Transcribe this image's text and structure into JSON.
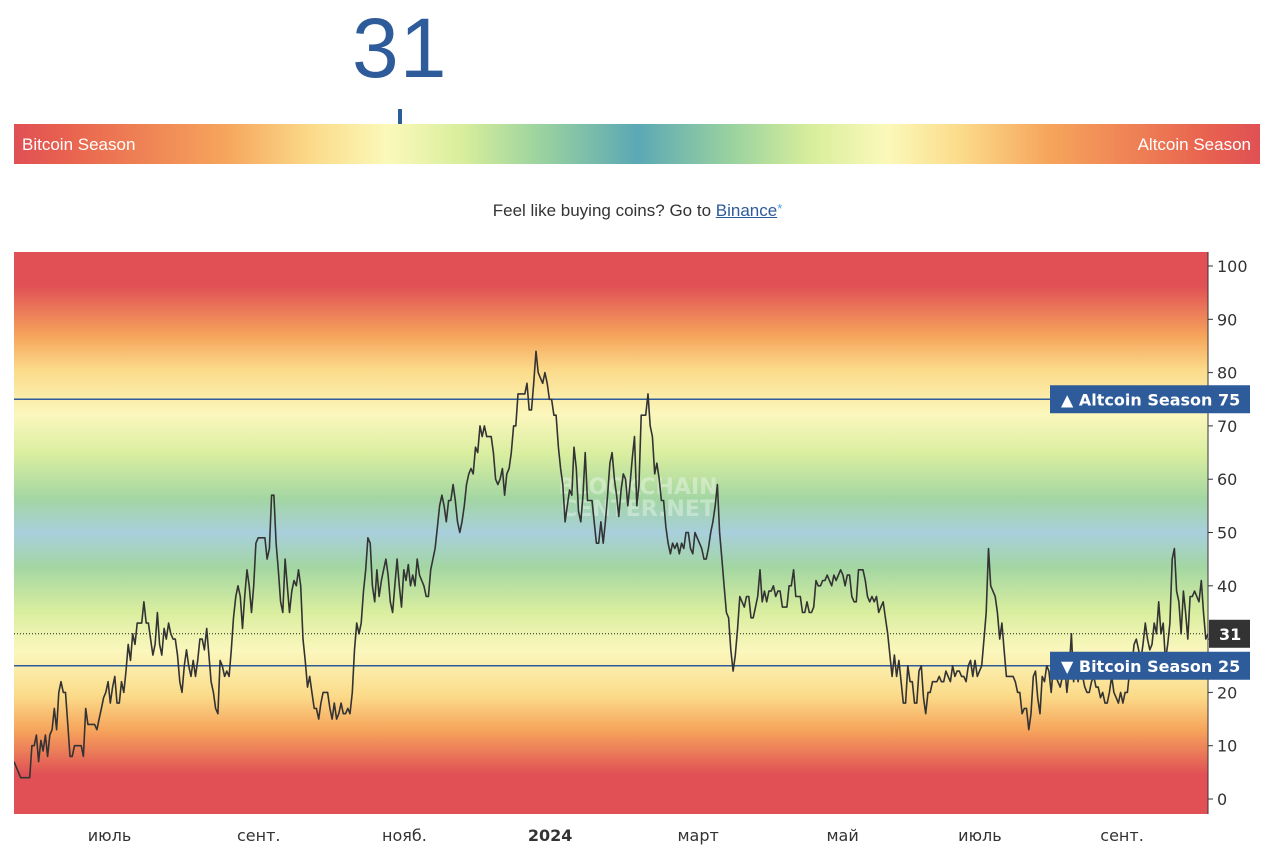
{
  "indicator": {
    "value": "31",
    "left_label": "Bitcoin Season",
    "right_label": "Altcoin Season",
    "position": 0.31
  },
  "promo": {
    "text": "Feel like buying coins? Go to ",
    "link_label": "Binance",
    "asterisk": "*"
  },
  "watermark": {
    "line1": "BLOCKCHAIN",
    "line2": "CENTER.NET"
  },
  "colors": {
    "accent": "#2e5b9a",
    "red": "#e05055",
    "line": "#333333"
  },
  "chart_data": {
    "type": "line",
    "ylim": [
      0,
      100
    ],
    "y_ticks": [
      0,
      10,
      20,
      30,
      40,
      50,
      60,
      70,
      80,
      90,
      100
    ],
    "x_ticks": [
      {
        "label": "июль",
        "bold": false,
        "t": 0.08
      },
      {
        "label": "сент.",
        "bold": false,
        "t": 0.205
      },
      {
        "label": "нояб.",
        "bold": false,
        "t": 0.327
      },
      {
        "label": "2024",
        "bold": true,
        "t": 0.449
      },
      {
        "label": "март",
        "bold": false,
        "t": 0.573
      },
      {
        "label": "май",
        "bold": false,
        "t": 0.694
      },
      {
        "label": "июль",
        "bold": false,
        "t": 0.809
      },
      {
        "label": "сент.",
        "bold": false,
        "t": 0.928
      }
    ],
    "reference_lines": [
      {
        "label": "▲ Altcoin Season",
        "value": 75
      },
      {
        "label": "▼ Bitcoin Season",
        "value": 25
      }
    ],
    "current": {
      "label": "31",
      "value": 31
    },
    "series": [
      {
        "values": [
          7,
          6,
          5,
          4,
          4,
          4,
          4,
          4,
          10,
          10,
          12,
          7,
          11,
          9,
          12,
          8,
          12,
          13,
          17,
          13,
          20,
          22,
          20,
          20,
          14,
          8,
          8,
          10,
          10,
          10,
          10,
          8,
          17,
          14,
          14,
          14,
          14,
          13,
          15,
          17,
          19,
          20,
          22,
          18,
          21,
          23,
          18,
          18,
          22,
          20,
          24,
          29,
          26,
          31,
          29,
          33,
          33,
          33,
          37,
          33,
          33,
          30,
          27,
          29,
          35,
          29,
          27,
          32,
          30,
          33,
          31,
          30,
          30,
          27,
          22,
          20,
          25,
          28,
          25,
          23,
          26,
          23,
          26,
          30,
          30,
          28,
          32,
          27,
          22,
          20,
          17,
          16,
          26,
          25,
          23,
          24,
          23,
          28,
          34,
          38,
          40,
          38,
          32,
          38,
          43,
          40,
          35,
          40,
          48,
          49,
          49,
          49,
          49,
          45,
          47,
          57,
          57,
          48,
          43,
          37,
          35,
          45,
          40,
          35,
          39,
          41,
          40,
          43,
          40,
          30,
          26,
          21,
          23,
          20,
          17,
          17,
          15,
          18,
          20,
          20,
          20,
          17,
          15,
          18,
          15,
          16,
          18,
          16,
          16,
          17,
          16,
          20,
          28,
          33,
          31,
          33,
          39,
          43,
          49,
          48,
          40,
          37,
          43,
          38,
          41,
          43,
          45,
          42,
          37,
          35,
          40,
          45,
          40,
          36,
          43,
          41,
          44,
          40,
          42,
          40,
          45,
          42,
          41,
          40,
          38,
          38,
          43,
          45,
          47,
          51,
          55,
          57,
          55,
          52,
          56,
          56,
          59,
          56,
          52,
          50,
          52,
          55,
          59,
          61,
          62,
          61,
          66,
          65,
          70,
          68,
          70,
          68,
          68,
          68,
          65,
          60,
          59,
          60,
          62,
          57,
          61,
          62,
          65,
          70,
          70,
          76,
          76,
          76,
          76,
          78,
          73,
          73,
          78,
          84,
          80,
          79,
          78,
          80,
          78,
          75,
          75,
          72,
          72,
          66,
          62,
          59,
          52,
          55,
          58,
          57,
          66,
          62,
          54,
          52,
          57,
          65,
          56,
          56,
          56,
          52,
          48,
          48,
          52,
          48,
          52,
          57,
          63,
          65,
          60,
          57,
          53,
          58,
          61,
          60,
          55,
          59,
          64,
          68,
          55,
          59,
          72,
          72,
          72,
          76,
          70,
          68,
          61,
          63,
          60,
          56,
          56,
          51,
          48,
          46,
          48,
          47,
          48,
          46,
          48,
          47,
          50,
          50,
          47,
          46,
          50,
          49,
          48,
          47,
          45,
          45,
          47,
          50,
          52,
          55,
          59,
          50,
          45,
          40,
          35,
          34,
          28,
          24,
          27,
          32,
          38,
          37,
          36,
          38,
          38,
          34,
          34,
          36,
          38,
          43,
          37,
          39,
          37,
          39,
          39,
          40,
          38,
          39,
          39,
          36,
          36,
          36,
          40,
          40,
          43,
          38,
          38,
          38,
          35,
          35,
          37,
          35,
          35,
          36,
          41,
          40,
          40,
          41,
          41,
          42,
          41,
          40,
          42,
          41,
          42,
          43,
          42,
          40,
          42,
          42,
          38,
          37,
          37,
          43,
          43,
          43,
          41,
          38,
          37,
          38,
          37,
          38,
          35,
          36,
          37,
          34,
          31,
          27,
          23,
          27,
          23,
          26,
          22,
          18,
          18,
          25,
          22,
          22,
          18,
          18,
          24,
          25,
          19,
          16,
          20,
          20,
          22,
          22,
          22,
          23,
          22,
          22,
          24,
          23,
          22,
          25,
          23,
          24,
          24,
          23,
          23,
          22,
          25,
          26,
          23,
          26,
          23,
          24,
          25,
          30,
          35,
          47,
          40,
          39,
          38,
          35,
          30,
          33,
          28,
          23,
          23,
          23,
          23,
          22,
          20,
          20,
          16,
          17,
          17,
          13,
          16,
          23,
          24,
          19,
          16,
          23,
          22,
          25,
          24,
          20,
          25,
          23,
          22,
          21,
          23,
          25,
          20,
          24,
          31,
          22,
          26,
          22,
          25,
          23,
          21,
          20,
          20,
          22,
          23,
          21,
          21,
          19,
          20,
          18,
          18,
          20,
          23,
          20,
          19,
          18,
          20,
          18,
          20,
          20,
          24,
          25,
          29,
          30,
          28,
          26,
          29,
          33,
          30,
          28,
          29,
          33,
          31,
          37,
          31,
          33,
          26,
          29,
          33,
          45,
          47,
          39,
          37,
          31,
          39,
          35,
          30,
          38,
          38,
          39,
          38,
          37,
          41,
          35,
          30,
          31
        ]
      }
    ]
  }
}
